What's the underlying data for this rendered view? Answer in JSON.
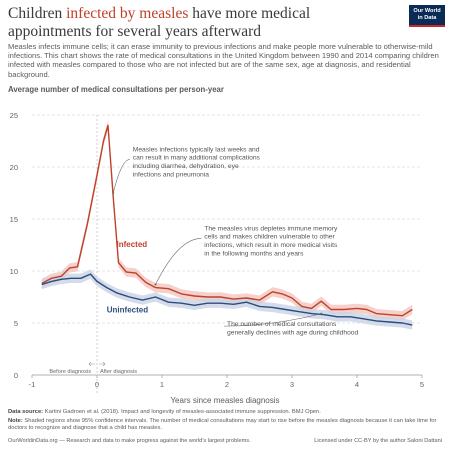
{
  "header": {
    "title_pre": "Children ",
    "title_highlight": "infected by measles",
    "title_post": " have more medical appointments for several years afterward",
    "subtitle": "Measles infects immune cells; it can erase immunity to previous infections and make people more vulnerable to otherwise-mild infections. This chart shows the rate of medical consultations in the United Kingdom between 1990 and 2014 comparing children infected with measles compared to those who are not infected but are of the same sex, age at diagnosis, and residential background.",
    "logo_line1": "Our World",
    "logo_line2": "in Data"
  },
  "colors": {
    "infected": "#c0402a",
    "uninfected": "#2c4c7c",
    "infected_band": "#f2c6bf",
    "uninfected_band": "#c9d3e6"
  },
  "chart_data": {
    "type": "line",
    "title": "Children infected by measles have more medical appointments for several years afterward",
    "ylabel": "Average number of medical consultations per person-year",
    "xlabel": "Years since measles diagnosis",
    "xlim": [
      -1,
      5
    ],
    "ylim": [
      0,
      25
    ],
    "x_ticks": [
      "-1",
      "0",
      "1",
      "2",
      "3",
      "4",
      "5"
    ],
    "y_ticks": [
      "0",
      "5",
      "10",
      "15",
      "20",
      "25"
    ],
    "grid": "horizontal",
    "series": [
      {
        "name": "Infected",
        "x": [
          -0.85,
          -0.7,
          -0.55,
          -0.42,
          -0.3,
          -0.15,
          0.0,
          0.1,
          0.17,
          0.25,
          0.33,
          0.45,
          0.6,
          0.75,
          0.9,
          1.1,
          1.3,
          1.5,
          1.7,
          1.9,
          2.1,
          2.3,
          2.5,
          2.7,
          2.85,
          3.0,
          3.15,
          3.3,
          3.45,
          3.6,
          3.8,
          4.0,
          4.15,
          4.3,
          4.5,
          4.7,
          4.85
        ],
        "values": [
          8.8,
          9.3,
          9.5,
          10.3,
          10.4,
          14.5,
          19.2,
          22.5,
          24.0,
          17.0,
          10.8,
          9.9,
          9.8,
          8.9,
          8.4,
          8.3,
          7.8,
          7.6,
          7.5,
          7.5,
          7.3,
          7.4,
          7.2,
          8.0,
          7.8,
          7.4,
          6.6,
          6.4,
          7.1,
          6.3,
          6.3,
          6.4,
          6.3,
          5.9,
          5.8,
          5.7,
          6.3
        ]
      },
      {
        "name": "Uninfected",
        "x": [
          -0.85,
          -0.7,
          -0.55,
          -0.4,
          -0.25,
          -0.1,
          0.0,
          0.15,
          0.3,
          0.5,
          0.7,
          0.9,
          1.1,
          1.3,
          1.5,
          1.7,
          1.9,
          2.1,
          2.3,
          2.5,
          2.7,
          2.9,
          3.1,
          3.3,
          3.5,
          3.7,
          3.9,
          4.1,
          4.3,
          4.5,
          4.7,
          4.85
        ],
        "values": [
          8.7,
          9.0,
          9.2,
          9.3,
          9.3,
          9.7,
          9.0,
          8.4,
          7.9,
          7.5,
          7.2,
          7.5,
          7.0,
          6.9,
          6.7,
          6.9,
          6.9,
          6.8,
          7.0,
          6.6,
          6.5,
          6.3,
          6.1,
          5.9,
          5.8,
          5.6,
          5.6,
          5.4,
          5.2,
          5.1,
          5.0,
          4.8
        ]
      }
    ],
    "series_labels": {
      "infected": "Infected",
      "uninfected": "Uninfected"
    },
    "annotations": [
      {
        "text": [
          "Measles infections typically last weeks and",
          "can result in many additional complications",
          "including diarrhea, dehydration, eye",
          "infections and pneumonia"
        ],
        "x": 0.55,
        "y": 21.5,
        "arrow_to": [
          0.25,
          17.5
        ]
      },
      {
        "text": [
          "The measles virus depletes immune memory",
          "cells and makes children vulnerable to other",
          "infections, which result in more medical visits",
          "in the following months and years"
        ],
        "x": 1.65,
        "y": 13.9,
        "arrow_to": [
          0.9,
          8.7
        ]
      },
      {
        "text": [
          "The number of medical consultations",
          "generally declines with age during childhood"
        ],
        "x": 2.0,
        "y": 4.7,
        "arrow_to": [
          3.45,
          5.9
        ]
      }
    ],
    "before_label": "Before diagnosis",
    "after_label": "After diagnosis"
  },
  "footer": {
    "source_label": "Data source:",
    "source_text": " Kartini Gadroen et al. (2018). Impact and longevity of measles-associated immune suppression. BMJ Open.",
    "note_label": "Note:",
    "note_text": " Shaded regions show 95% confidence intervals. The number of medical consultations may start to rise before the measles diagnosis because it can take time for doctors to recognize and diagnose that a child has measles.",
    "site": "OurWorldinData.org — Research and data to make progress against the world’s largest problems.",
    "license": "Licensed under CC-BY by the author Saloni Dattani"
  }
}
